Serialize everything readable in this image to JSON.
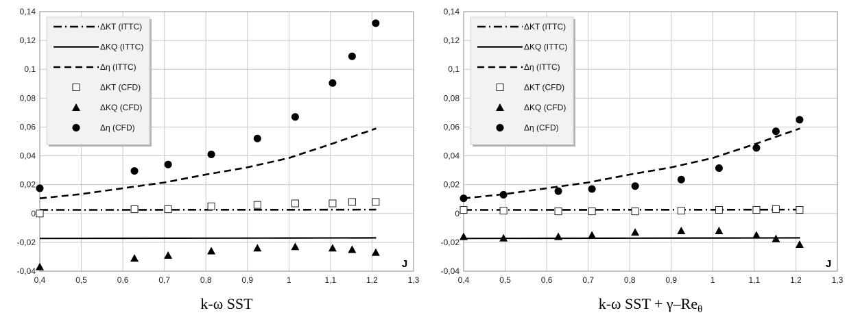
{
  "chart_data": [
    {
      "type": "line",
      "caption": "k-ω SST",
      "corner_label": "J",
      "xlim": [
        0.4,
        1.3
      ],
      "ylim": [
        -0.04,
        0.14
      ],
      "xticks": [
        0.4,
        0.5,
        0.6,
        0.7,
        0.8,
        0.9,
        1.0,
        1.1,
        1.2,
        1.3
      ],
      "xtick_labels": [
        "0,4",
        "0,5",
        "0,6",
        "0,7",
        "0,8",
        "0,9",
        "1",
        "1,1",
        "1,2",
        "1,3"
      ],
      "yticks": [
        -0.04,
        -0.02,
        0,
        0.02,
        0.04,
        0.06,
        0.08,
        0.1,
        0.12,
        0.14
      ],
      "ytick_labels": [
        "-0,04",
        "-0,02",
        "0",
        "0,02",
        "0,04",
        "0,06",
        "0,08",
        "0,1",
        "0,12",
        "0,14"
      ],
      "grid": true,
      "legend": "top-left",
      "series": [
        {
          "name": "ΔKT (ITTC)",
          "style": "dashdot",
          "x": [
            0.4,
            0.6,
            0.8,
            1.0,
            1.21
          ],
          "y": [
            0.0025,
            0.0025,
            0.0026,
            0.0026,
            0.0027
          ]
        },
        {
          "name": "ΔKQ (ITTC)",
          "style": "solid",
          "x": [
            0.4,
            0.6,
            0.8,
            1.0,
            1.21
          ],
          "y": [
            -0.0173,
            -0.0172,
            -0.0171,
            -0.017,
            -0.0169
          ]
        },
        {
          "name": "Δη (ITTC)",
          "style": "dashed",
          "x": [
            0.4,
            0.5,
            0.6,
            0.7,
            0.8,
            0.9,
            1.0,
            1.1,
            1.21
          ],
          "y": [
            0.0105,
            0.0135,
            0.0175,
            0.0215,
            0.027,
            0.032,
            0.0385,
            0.048,
            0.059
          ]
        },
        {
          "name": "ΔKT (CFD)",
          "marker": "square",
          "x": [
            0.4,
            0.628,
            0.709,
            0.813,
            0.924,
            1.015,
            1.105,
            1.152,
            1.209
          ],
          "y": [
            0.0,
            0.003,
            0.003,
            0.005,
            0.006,
            0.007,
            0.007,
            0.008,
            0.008
          ]
        },
        {
          "name": "ΔKQ (CFD)",
          "marker": "triangle",
          "x": [
            0.4,
            0.628,
            0.709,
            0.813,
            0.924,
            1.015,
            1.105,
            1.152,
            1.209
          ],
          "y": [
            -0.037,
            -0.031,
            -0.029,
            -0.026,
            -0.024,
            -0.023,
            -0.024,
            -0.025,
            -0.027
          ]
        },
        {
          "name": "Δη (CFD)",
          "marker": "circle",
          "x": [
            0.4,
            0.628,
            0.709,
            0.813,
            0.924,
            1.015,
            1.105,
            1.152,
            1.209
          ],
          "y": [
            0.0175,
            0.0295,
            0.034,
            0.041,
            0.052,
            0.067,
            0.0905,
            0.109,
            0.132
          ]
        }
      ]
    },
    {
      "type": "line",
      "caption": "k-ω SST + γ–Re",
      "caption_sub": "θ",
      "corner_label": "J",
      "xlim": [
        0.4,
        1.3
      ],
      "ylim": [
        -0.04,
        0.14
      ],
      "xticks": [
        0.4,
        0.5,
        0.6,
        0.7,
        0.8,
        0.9,
        1.0,
        1.1,
        1.2,
        1.3
      ],
      "xtick_labels": [
        "0,4",
        "0,5",
        "0,6",
        "0,7",
        "0,8",
        "0,9",
        "1",
        "1,1",
        "1,2",
        "1,3"
      ],
      "yticks": [
        -0.04,
        -0.02,
        0,
        0.02,
        0.04,
        0.06,
        0.08,
        0.1,
        0.12,
        0.14
      ],
      "ytick_labels": [
        "-0,04",
        "-0,02",
        "0",
        "0,02",
        "0,04",
        "0,06",
        "0,08",
        "0,1",
        "0,12",
        "0,14"
      ],
      "grid": true,
      "legend": "top-left",
      "series": [
        {
          "name": "ΔKT (ITTC)",
          "style": "dashdot",
          "x": [
            0.4,
            0.6,
            0.8,
            1.0,
            1.21
          ],
          "y": [
            0.0025,
            0.0025,
            0.0026,
            0.0026,
            0.0027
          ]
        },
        {
          "name": "ΔKQ (ITTC)",
          "style": "solid",
          "x": [
            0.4,
            0.6,
            0.8,
            1.0,
            1.21
          ],
          "y": [
            -0.0173,
            -0.0172,
            -0.0171,
            -0.017,
            -0.0169
          ]
        },
        {
          "name": "Δη (ITTC)",
          "style": "dashed",
          "x": [
            0.4,
            0.5,
            0.6,
            0.7,
            0.8,
            0.9,
            1.0,
            1.1,
            1.21
          ],
          "y": [
            0.0105,
            0.0135,
            0.0175,
            0.0215,
            0.027,
            0.032,
            0.0385,
            0.048,
            0.059
          ]
        },
        {
          "name": "ΔKT (CFD)",
          "marker": "square",
          "x": [
            0.4,
            0.496,
            0.628,
            0.709,
            0.813,
            0.924,
            1.015,
            1.105,
            1.152,
            1.209
          ],
          "y": [
            0.0025,
            0.002,
            0.0015,
            0.0015,
            0.0015,
            0.002,
            0.0025,
            0.0025,
            0.003,
            0.0025
          ]
        },
        {
          "name": "ΔKQ (CFD)",
          "marker": "triangle",
          "x": [
            0.4,
            0.496,
            0.628,
            0.709,
            0.813,
            0.924,
            1.015,
            1.105,
            1.152,
            1.209
          ],
          "y": [
            -0.016,
            -0.017,
            -0.016,
            -0.015,
            -0.013,
            -0.012,
            -0.012,
            -0.015,
            -0.0175,
            -0.0215
          ]
        },
        {
          "name": "Δη (CFD)",
          "marker": "circle",
          "x": [
            0.4,
            0.496,
            0.628,
            0.709,
            0.813,
            0.924,
            1.015,
            1.105,
            1.152,
            1.209
          ],
          "y": [
            0.0105,
            0.013,
            0.0155,
            0.017,
            0.019,
            0.0235,
            0.0315,
            0.0455,
            0.057,
            0.065
          ]
        }
      ]
    }
  ]
}
